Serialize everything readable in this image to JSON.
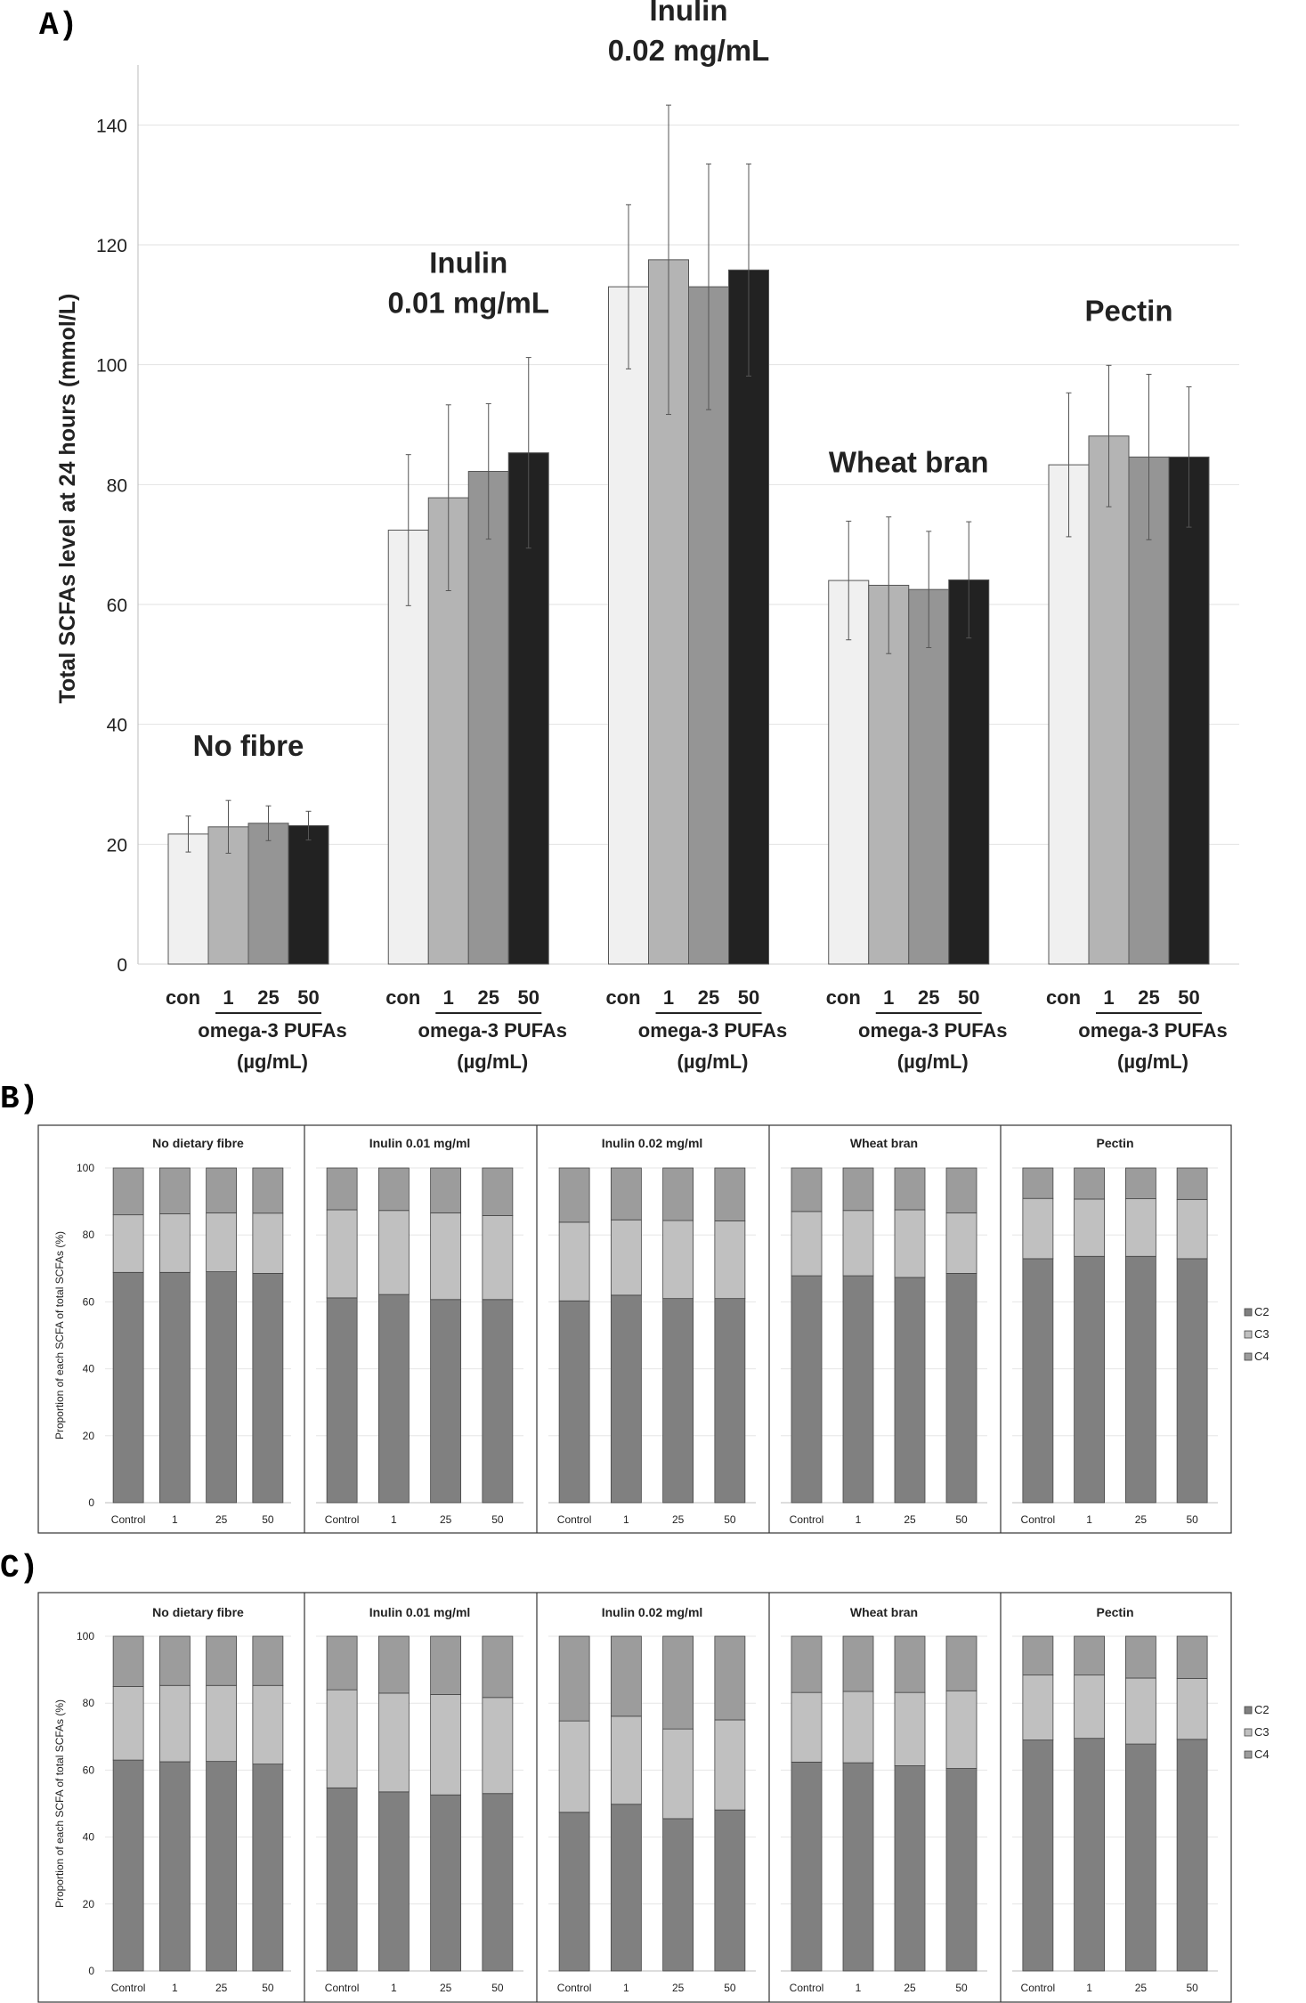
{
  "chart_data": [
    {
      "panel_label": "A)",
      "type": "bar",
      "ylabel": "Total SCFAs level at 24 hours (mmol/L)",
      "ylim": [
        0,
        150
      ],
      "yticks": [
        0,
        20,
        40,
        60,
        80,
        100,
        120,
        140
      ],
      "grid": true,
      "categories": [
        "con",
        "1",
        "25",
        "50"
      ],
      "x_group_label": [
        "omega-3 PUFAs",
        "(µg/mL)"
      ],
      "bar_colors": [
        "#f0f0f0",
        "#b4b4b4",
        "#959595",
        "#222222"
      ],
      "groups": [
        {
          "title": [
            "No fibre"
          ],
          "values": [
            21.7,
            22.9,
            23.5,
            23.1
          ],
          "errors": [
            3.0,
            4.4,
            2.9,
            2.4
          ]
        },
        {
          "title": [
            "Inulin",
            "0.01 mg/mL"
          ],
          "values": [
            72.4,
            77.8,
            82.2,
            85.3
          ],
          "errors": [
            12.6,
            15.5,
            11.3,
            15.9
          ]
        },
        {
          "title": [
            "Inulin",
            "0.02 mg/mL"
          ],
          "values": [
            113.0,
            117.5,
            113.0,
            115.8
          ],
          "errors": [
            13.7,
            25.8,
            20.5,
            17.7
          ]
        },
        {
          "title": [
            "Wheat bran"
          ],
          "values": [
            64.0,
            63.2,
            62.5,
            64.1
          ],
          "errors": [
            9.9,
            11.4,
            9.7,
            9.7
          ]
        },
        {
          "title": [
            "Pectin"
          ],
          "values": [
            83.3,
            88.1,
            84.6,
            84.6
          ],
          "errors": [
            12.0,
            11.8,
            13.8,
            11.7
          ]
        }
      ]
    },
    {
      "panel_label": "B)",
      "type": "bar",
      "stacked": true,
      "ylabel": "Proportion of each SCFA of total SCFAs (%)",
      "ylim": [
        0,
        100
      ],
      "yticks": [
        0,
        20,
        40,
        60,
        80,
        100
      ],
      "grid": true,
      "legend_position": "right",
      "categories": [
        "Control",
        "1",
        "25",
        "50"
      ],
      "series_meta": [
        {
          "name": "C2",
          "color": "#808080"
        },
        {
          "name": "C3",
          "color": "#c0c0c0"
        },
        {
          "name": "C4",
          "color": "#9c9c9c"
        }
      ],
      "panels": [
        {
          "title": "No dietary fibre",
          "C2": [
            68.8,
            68.8,
            69.0,
            68.5
          ],
          "C3": [
            17.2,
            17.5,
            17.6,
            18.0
          ],
          "C4": [
            14.0,
            13.7,
            13.4,
            13.5
          ]
        },
        {
          "title": "Inulin 0.01 mg/ml",
          "C2": [
            61.2,
            62.2,
            60.7,
            60.7
          ],
          "C3": [
            26.3,
            25.1,
            25.9,
            25.1
          ],
          "C4": [
            12.5,
            12.7,
            13.4,
            14.2
          ]
        },
        {
          "title": "Inulin 0.02 mg/ml",
          "C2": [
            60.3,
            62.0,
            61.0,
            61.0
          ],
          "C3": [
            23.5,
            22.5,
            23.3,
            23.2
          ],
          "C4": [
            16.2,
            15.5,
            15.7,
            15.8
          ]
        },
        {
          "title": "Wheat bran",
          "C2": [
            67.8,
            67.8,
            67.3,
            68.5
          ],
          "C3": [
            19.2,
            19.5,
            20.2,
            18.1
          ],
          "C4": [
            13.0,
            12.7,
            12.5,
            13.4
          ]
        },
        {
          "title": "Pectin",
          "C2": [
            72.9,
            73.6,
            73.6,
            72.9
          ],
          "C3": [
            18.0,
            17.1,
            17.2,
            17.7
          ],
          "C4": [
            9.1,
            9.3,
            9.2,
            9.4
          ]
        }
      ]
    },
    {
      "panel_label": "C)",
      "type": "bar",
      "stacked": true,
      "ylabel": "Proportion of each SCFA of total SCFAs (%)",
      "ylim": [
        0,
        100
      ],
      "yticks": [
        0,
        20,
        40,
        60,
        80,
        100
      ],
      "grid": true,
      "legend_position": "right",
      "categories": [
        "Control",
        "1",
        "25",
        "50"
      ],
      "series_meta": [
        {
          "name": "C2",
          "color": "#808080"
        },
        {
          "name": "C3",
          "color": "#c0c0c0"
        },
        {
          "name": "C4",
          "color": "#9c9c9c"
        }
      ],
      "panels": [
        {
          "title": "No dietary fibre",
          "C2": [
            63.0,
            62.5,
            62.6,
            61.8
          ],
          "C3": [
            22.0,
            22.8,
            22.7,
            23.5
          ],
          "C4": [
            15.0,
            14.7,
            14.7,
            14.7
          ]
        },
        {
          "title": "Inulin 0.01 mg/ml",
          "C2": [
            54.7,
            53.5,
            52.6,
            53.0
          ],
          "C3": [
            29.3,
            29.5,
            30.0,
            28.7
          ],
          "C4": [
            16.0,
            17.0,
            17.4,
            18.3
          ]
        },
        {
          "title": "Inulin 0.02 mg/ml",
          "C2": [
            47.4,
            49.8,
            45.5,
            48.1
          ],
          "C3": [
            27.3,
            26.3,
            26.8,
            26.9
          ],
          "C4": [
            25.3,
            23.9,
            27.7,
            25.0
          ]
        },
        {
          "title": "Wheat bran",
          "C2": [
            62.4,
            62.2,
            61.3,
            60.5
          ],
          "C3": [
            20.8,
            21.3,
            21.9,
            23.2
          ],
          "C4": [
            16.8,
            16.5,
            16.8,
            16.3
          ]
        },
        {
          "title": "Pectin",
          "C2": [
            69.0,
            69.5,
            67.8,
            69.2
          ],
          "C3": [
            19.4,
            18.9,
            19.7,
            18.2
          ],
          "C4": [
            11.6,
            11.6,
            12.5,
            12.6
          ]
        }
      ]
    }
  ]
}
